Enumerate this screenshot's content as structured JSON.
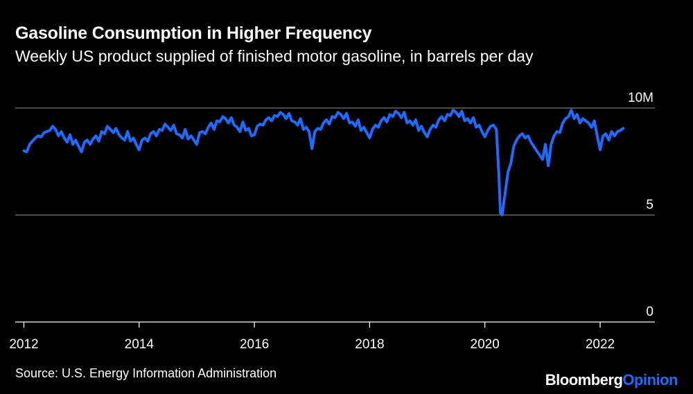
{
  "header": {
    "title": "Gasoline Consumption in Higher Frequency",
    "subtitle": "Weekly US product supplied of finished motor gasoline, in barrels per day"
  },
  "footer": {
    "source": "Source: U.S. Energy Information Administration",
    "brand_primary": "Bloomberg",
    "brand_secondary": "Opinion"
  },
  "colors": {
    "background": "#000000",
    "line": "#1f6bff",
    "gridline": "#7a7a7a",
    "text": "#ffffff",
    "brand_accent": "#1f6bff"
  },
  "chart_data": {
    "type": "line",
    "title": "Gasoline Consumption in Higher Frequency",
    "subtitle": "Weekly US product supplied of finished motor gasoline, in barrels per day",
    "xlabel": "",
    "ylabel": "",
    "x_range": [
      2011.85,
      2022.95
    ],
    "ylim": [
      0,
      10
    ],
    "y_ticks": [
      {
        "value": 10,
        "label": "10M"
      },
      {
        "value": 5,
        "label": "5"
      },
      {
        "value": 0,
        "label": "0"
      }
    ],
    "x_ticks": [
      {
        "value": 2012,
        "label": "2012"
      },
      {
        "value": 2014,
        "label": "2014"
      },
      {
        "value": 2016,
        "label": "2016"
      },
      {
        "value": 2018,
        "label": "2018"
      },
      {
        "value": 2020,
        "label": "2020"
      },
      {
        "value": 2022,
        "label": "2022"
      }
    ],
    "grid": true,
    "legend": "none",
    "series": [
      {
        "color": "#1f6bff",
        "x": [
          2012.0,
          2012.05,
          2012.1,
          2012.15,
          2012.2,
          2012.25,
          2012.3,
          2012.35,
          2012.4,
          2012.45,
          2012.5,
          2012.55,
          2012.6,
          2012.65,
          2012.7,
          2012.75,
          2012.8,
          2012.85,
          2012.9,
          2012.95,
          2013.0,
          2013.05,
          2013.1,
          2013.15,
          2013.2,
          2013.25,
          2013.3,
          2013.35,
          2013.4,
          2013.45,
          2013.5,
          2013.55,
          2013.6,
          2013.65,
          2013.7,
          2013.75,
          2013.8,
          2013.85,
          2013.9,
          2013.95,
          2014.0,
          2014.05,
          2014.1,
          2014.15,
          2014.2,
          2014.25,
          2014.3,
          2014.35,
          2014.4,
          2014.45,
          2014.5,
          2014.55,
          2014.6,
          2014.65,
          2014.7,
          2014.75,
          2014.8,
          2014.85,
          2014.9,
          2014.95,
          2015.0,
          2015.05,
          2015.1,
          2015.15,
          2015.2,
          2015.25,
          2015.3,
          2015.35,
          2015.4,
          2015.45,
          2015.5,
          2015.55,
          2015.6,
          2015.65,
          2015.7,
          2015.75,
          2015.8,
          2015.85,
          2015.9,
          2015.95,
          2016.0,
          2016.05,
          2016.1,
          2016.15,
          2016.2,
          2016.25,
          2016.3,
          2016.35,
          2016.4,
          2016.45,
          2016.5,
          2016.55,
          2016.6,
          2016.65,
          2016.7,
          2016.75,
          2016.8,
          2016.85,
          2016.9,
          2016.95,
          2017.0,
          2017.05,
          2017.1,
          2017.15,
          2017.2,
          2017.25,
          2017.3,
          2017.35,
          2017.4,
          2017.45,
          2017.5,
          2017.55,
          2017.6,
          2017.65,
          2017.7,
          2017.75,
          2017.8,
          2017.85,
          2017.9,
          2017.95,
          2018.0,
          2018.05,
          2018.1,
          2018.15,
          2018.2,
          2018.25,
          2018.3,
          2018.35,
          2018.4,
          2018.45,
          2018.5,
          2018.55,
          2018.6,
          2018.65,
          2018.7,
          2018.75,
          2018.8,
          2018.85,
          2018.9,
          2018.95,
          2019.0,
          2019.05,
          2019.1,
          2019.15,
          2019.2,
          2019.25,
          2019.3,
          2019.35,
          2019.4,
          2019.45,
          2019.5,
          2019.55,
          2019.6,
          2019.65,
          2019.7,
          2019.75,
          2019.8,
          2019.85,
          2019.9,
          2019.95,
          2020.0,
          2020.05,
          2020.1,
          2020.15,
          2020.2,
          2020.24,
          2020.27,
          2020.3,
          2020.35,
          2020.4,
          2020.45,
          2020.5,
          2020.55,
          2020.6,
          2020.65,
          2020.7,
          2020.75,
          2020.8,
          2020.85,
          2020.9,
          2020.95,
          2021.0,
          2021.05,
          2021.1,
          2021.15,
          2021.2,
          2021.25,
          2021.3,
          2021.35,
          2021.4,
          2021.45,
          2021.5,
          2021.55,
          2021.6,
          2021.65,
          2021.7,
          2021.75,
          2021.8,
          2021.85,
          2021.9,
          2021.95,
          2022.0,
          2022.05,
          2022.1,
          2022.15,
          2022.2,
          2022.25,
          2022.3,
          2022.35,
          2022.4
        ],
        "y": [
          8.0,
          7.95,
          8.3,
          8.45,
          8.6,
          8.7,
          8.65,
          8.85,
          8.9,
          8.95,
          9.15,
          9.0,
          8.7,
          8.9,
          8.6,
          8.4,
          8.75,
          8.3,
          8.5,
          8.2,
          7.95,
          8.4,
          8.5,
          8.3,
          8.55,
          8.7,
          8.45,
          8.9,
          8.8,
          9.15,
          9.0,
          8.85,
          9.05,
          8.75,
          8.6,
          8.5,
          8.9,
          8.45,
          8.6,
          8.3,
          8.05,
          8.5,
          8.6,
          8.45,
          8.8,
          8.9,
          8.7,
          9.0,
          8.95,
          9.25,
          9.1,
          8.95,
          9.2,
          8.8,
          8.75,
          8.6,
          9.0,
          8.55,
          8.7,
          8.5,
          8.3,
          8.85,
          8.9,
          8.8,
          9.1,
          9.3,
          9.0,
          9.4,
          9.35,
          9.6,
          9.5,
          9.3,
          9.55,
          9.2,
          9.1,
          8.9,
          9.35,
          8.95,
          9.05,
          8.7,
          8.75,
          9.15,
          9.25,
          9.2,
          9.45,
          9.55,
          9.4,
          9.65,
          9.6,
          9.8,
          9.7,
          9.5,
          9.75,
          9.4,
          9.35,
          9.2,
          9.5,
          9.0,
          9.1,
          8.9,
          8.1,
          8.9,
          9.05,
          9.0,
          9.3,
          9.45,
          9.25,
          9.6,
          9.55,
          9.8,
          9.7,
          9.5,
          9.75,
          9.3,
          9.35,
          9.15,
          9.45,
          8.95,
          9.1,
          8.85,
          8.6,
          9.0,
          9.2,
          9.1,
          9.4,
          9.55,
          9.35,
          9.7,
          9.6,
          9.85,
          9.75,
          9.55,
          9.8,
          9.3,
          9.4,
          9.2,
          9.45,
          8.95,
          9.15,
          8.85,
          8.65,
          9.0,
          9.2,
          9.1,
          9.45,
          9.6,
          9.4,
          9.7,
          9.65,
          9.9,
          9.8,
          9.6,
          9.85,
          9.4,
          9.5,
          9.3,
          9.55,
          9.1,
          9.2,
          8.9,
          8.65,
          8.95,
          9.15,
          9.2,
          9.0,
          7.0,
          5.1,
          5.0,
          6.0,
          7.0,
          7.4,
          8.2,
          8.5,
          8.7,
          8.8,
          8.6,
          8.7,
          8.4,
          8.2,
          8.0,
          7.8,
          7.6,
          8.3,
          7.3,
          8.3,
          8.7,
          8.9,
          8.85,
          9.3,
          9.5,
          9.6,
          9.9,
          9.5,
          9.7,
          9.3,
          9.5,
          9.4,
          9.3,
          9.1,
          9.4,
          8.7,
          8.05,
          8.7,
          8.8,
          8.5,
          8.9,
          8.7,
          8.9,
          8.95,
          9.05
        ]
      }
    ]
  }
}
